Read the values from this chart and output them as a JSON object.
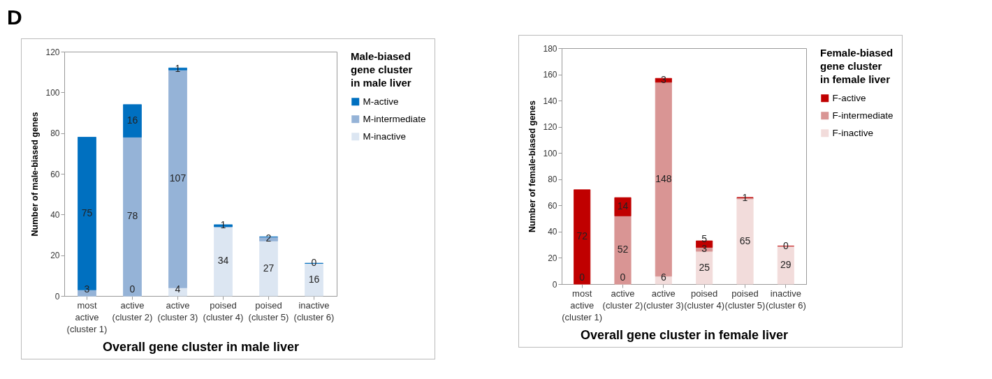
{
  "chart_data": [
    {
      "type": "bar",
      "stacked": true,
      "legend": "right",
      "grid": false,
      "annotations": [
        "D"
      ],
      "xlabel": "Overall gene cluster in male liver",
      "ylabel": "Number of male-biased genes",
      "legend_title": "Male-biased\ngene cluster\nin male liver",
      "categories": [
        "most active (cluster 1)",
        "active (cluster 2)",
        "active (cluster 3)",
        "poised (cluster 4)",
        "poised (cluster 5)",
        "inactive (cluster 6)"
      ],
      "ylim": [
        0,
        120
      ],
      "yticks": [
        0,
        20,
        40,
        60,
        80,
        100,
        120
      ],
      "series": [
        {
          "name": "M-inactive",
          "color": "#dce6f2",
          "values": [
            0,
            0,
            4,
            34,
            27,
            16
          ],
          "value_labels": [
            null,
            "0",
            "4",
            "34",
            "27",
            "16"
          ]
        },
        {
          "name": "M-intermediate",
          "color": "#95b3d7",
          "values": [
            3,
            78,
            107,
            0,
            2,
            0
          ],
          "value_labels": [
            "3",
            "78",
            "107",
            null,
            "2",
            "0"
          ]
        },
        {
          "name": "M-active",
          "color": "#0070c0",
          "values": [
            75,
            16,
            1,
            1,
            0,
            0
          ],
          "value_labels": [
            "75",
            "16",
            "1",
            "1",
            null,
            null
          ]
        }
      ]
    },
    {
      "type": "bar",
      "stacked": true,
      "legend": "right",
      "grid": false,
      "xlabel": "Overall gene cluster in female liver",
      "ylabel": "Number of female-biased genes",
      "legend_title": "Female-biased\ngene cluster\nin female liver",
      "categories": [
        "most active (cluster 1)",
        "active (cluster 2)",
        "active (cluster 3)",
        "poised (cluster 4)",
        "poised (cluster 5)",
        "inactive (cluster 6)"
      ],
      "ylim": [
        0,
        180
      ],
      "yticks": [
        0,
        20,
        40,
        60,
        80,
        100,
        120,
        140,
        160,
        180
      ],
      "series": [
        {
          "name": "F-inactive",
          "color": "#f2dcdb",
          "values": [
            0,
            0,
            6,
            25,
            65,
            29
          ],
          "value_labels": [
            "0",
            "0",
            "6",
            "25",
            "65",
            "29"
          ]
        },
        {
          "name": "F-intermediate",
          "color": "#d99594",
          "values": [
            0,
            52,
            148,
            3,
            1,
            0
          ],
          "value_labels": [
            null,
            "52",
            "148",
            "3",
            "1",
            "0"
          ]
        },
        {
          "name": "F-active",
          "color": "#c00000",
          "values": [
            72,
            14,
            3,
            5,
            0,
            0
          ],
          "value_labels": [
            "72",
            "14",
            "3",
            "5",
            null,
            null
          ]
        }
      ]
    }
  ]
}
